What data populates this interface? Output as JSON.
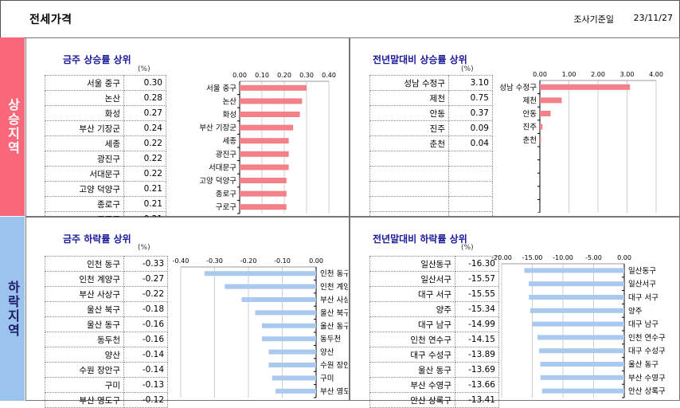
{
  "header": {
    "title": "전세가격",
    "date_label": "조사기준일",
    "date_value": "23/11/27"
  },
  "sections": {
    "rise": "상승지역",
    "fall": "하락지역"
  },
  "unit": "(%)",
  "colors": {
    "rise": "#f4808a",
    "fall": "#a9c9ee",
    "rise_side": "#f8687a",
    "fall_side": "#9cc3ee",
    "title": "#1a1a99"
  },
  "chart_data": [
    {
      "id": "week_up",
      "type": "bar",
      "title": "금주 상승률 상위",
      "unit": "(%)",
      "categories": [
        "서울 중구",
        "논산",
        "화성",
        "부산 기장군",
        "세종",
        "광진구",
        "서대문구",
        "고양 덕양구",
        "종로구",
        "구로구"
      ],
      "values_text": [
        "0.30",
        "0.28",
        "0.27",
        "0.24",
        "0.22",
        "0.22",
        "0.22",
        "0.21",
        "0.21",
        "0.21"
      ],
      "values": [
        0.3,
        0.28,
        0.27,
        0.24,
        0.22,
        0.22,
        0.22,
        0.21,
        0.21,
        0.21
      ],
      "ticks": [
        "0.00",
        "0.10",
        "0.20",
        "0.30",
        "0.40"
      ],
      "xlim": [
        0,
        0.4
      ],
      "rows": 10
    },
    {
      "id": "year_up",
      "type": "bar",
      "title": "전년말대비 상승률 상위",
      "unit": "(%)",
      "categories": [
        "성남 수정구",
        "제천",
        "안동",
        "진주",
        "춘천"
      ],
      "values_text": [
        "3.10",
        "0.75",
        "0.37",
        "0.09",
        "0.04"
      ],
      "values": [
        3.1,
        0.75,
        0.37,
        0.09,
        0.04
      ],
      "ticks": [
        "0.00",
        "1.00",
        "2.00",
        "3.00",
        "4.00"
      ],
      "xlim": [
        0,
        4.0
      ],
      "rows": 10
    },
    {
      "id": "week_down",
      "type": "bar",
      "title": "금주 하락률 상위",
      "unit": "(%)",
      "categories": [
        "인천 동구",
        "인천 계양구",
        "부산 사상구",
        "울산 북구",
        "울산 동구",
        "동두천",
        "양산",
        "수원 장안구",
        "구미",
        "부산 영도구"
      ],
      "values_text": [
        "-0.33",
        "-0.27",
        "-0.22",
        "-0.18",
        "-0.16",
        "-0.16",
        "-0.14",
        "-0.14",
        "-0.13",
        "-0.12"
      ],
      "values": [
        -0.33,
        -0.27,
        -0.22,
        -0.18,
        -0.16,
        -0.16,
        -0.14,
        -0.14,
        -0.13,
        -0.12
      ],
      "ticks": [
        "-0.40",
        "-0.30",
        "-0.20",
        "-0.10",
        "0.00"
      ],
      "xlim": [
        -0.4,
        0
      ],
      "rows": 10
    },
    {
      "id": "year_down",
      "type": "bar",
      "title": "전년말대비 하락률 상위",
      "unit": "(%)",
      "categories": [
        "일산동구",
        "일산서구",
        "대구 서구",
        "양주",
        "대구 남구",
        "인천 연수구",
        "대구 수성구",
        "울산 동구",
        "부산 수영구",
        "안산 상록구"
      ],
      "values_text": [
        "-16.30",
        "-15.57",
        "-15.55",
        "-15.34",
        "-14.99",
        "-14.15",
        "-13.89",
        "-13.69",
        "-13.66",
        "-13.41"
      ],
      "values": [
        -16.3,
        -15.57,
        -15.55,
        -15.34,
        -14.99,
        -14.15,
        -13.89,
        -13.69,
        -13.66,
        -13.41
      ],
      "ticks": [
        "-20.00",
        "-15.00",
        "-10.00",
        "-5.00",
        "0.00"
      ],
      "xlim": [
        -20,
        0
      ],
      "rows": 10
    }
  ]
}
